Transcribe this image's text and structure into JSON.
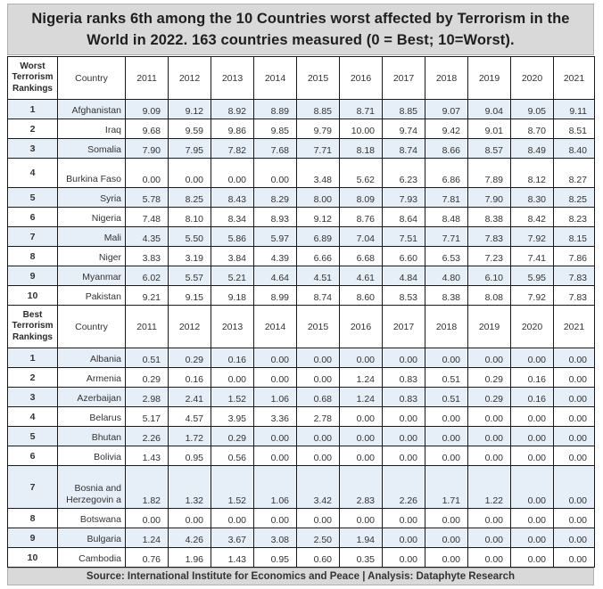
{
  "title": {
    "line1": "Nigeria ranks 6th among the 10 Countries worst affected by Terrorism in the",
    "line2": "World in 2022. 163 countries measured (0 = Best; 10=Worst)."
  },
  "columns": {
    "country": "Country",
    "years": [
      "2011",
      "2012",
      "2013",
      "2014",
      "2015",
      "2016",
      "2017",
      "2018",
      "2019",
      "2020",
      "2021"
    ]
  },
  "worst": {
    "header": [
      "Worst",
      "Terrorism",
      "Rankings"
    ],
    "rows": [
      {
        "rank": "1",
        "country": "Afghanistan",
        "values": [
          "9.09",
          "9.12",
          "8.92",
          "8.89",
          "8.85",
          "8.71",
          "8.85",
          "9.07",
          "9.04",
          "9.05",
          "9.11"
        ]
      },
      {
        "rank": "2",
        "country": "Iraq",
        "values": [
          "9.68",
          "9.59",
          "9.86",
          "9.85",
          "9.79",
          "10.00",
          "9.74",
          "9.42",
          "9.01",
          "8.70",
          "8.51"
        ]
      },
      {
        "rank": "3",
        "country": "Somalia",
        "values": [
          "7.90",
          "7.95",
          "7.82",
          "7.68",
          "7.71",
          "8.18",
          "8.74",
          "8.66",
          "8.57",
          "8.49",
          "8.40"
        ]
      },
      {
        "rank": "4",
        "country": "Burkina Faso",
        "values": [
          "0.00",
          "0.00",
          "0.00",
          "0.00",
          "3.48",
          "5.62",
          "6.23",
          "6.86",
          "7.89",
          "8.12",
          "8.27"
        ]
      },
      {
        "rank": "5",
        "country": "Syria",
        "values": [
          "5.78",
          "8.25",
          "8.43",
          "8.29",
          "8.00",
          "8.09",
          "7.93",
          "7.81",
          "7.90",
          "8.30",
          "8.25"
        ]
      },
      {
        "rank": "6",
        "country": "Nigeria",
        "values": [
          "7.48",
          "8.10",
          "8.34",
          "8.93",
          "9.12",
          "8.76",
          "8.64",
          "8.48",
          "8.38",
          "8.42",
          "8.23"
        ]
      },
      {
        "rank": "7",
        "country": "Mali",
        "values": [
          "4.35",
          "5.50",
          "5.86",
          "5.97",
          "6.89",
          "7.04",
          "7.51",
          "7.71",
          "7.83",
          "7.92",
          "8.15"
        ]
      },
      {
        "rank": "8",
        "country": "Niger",
        "values": [
          "3.83",
          "3.19",
          "3.84",
          "4.39",
          "6.66",
          "6.68",
          "6.60",
          "6.53",
          "7.23",
          "7.41",
          "7.86"
        ]
      },
      {
        "rank": "9",
        "country": "Myanmar",
        "values": [
          "6.02",
          "5.57",
          "5.21",
          "4.64",
          "4.51",
          "4.61",
          "4.84",
          "4.80",
          "6.10",
          "5.95",
          "7.83"
        ]
      },
      {
        "rank": "10",
        "country": "Pakistan",
        "values": [
          "9.21",
          "9.15",
          "9.18",
          "8.99",
          "8.74",
          "8.60",
          "8.53",
          "8.38",
          "8.08",
          "7.92",
          "7.83"
        ]
      }
    ]
  },
  "best": {
    "header": [
      "Best",
      "Terrorism",
      "Rankings"
    ],
    "rows": [
      {
        "rank": "1",
        "country": "Albania",
        "values": [
          "0.51",
          "0.29",
          "0.16",
          "0.00",
          "0.00",
          "0.00",
          "0.00",
          "0.00",
          "0.00",
          "0.00",
          "0.00"
        ]
      },
      {
        "rank": "2",
        "country": "Armenia",
        "values": [
          "0.29",
          "0.16",
          "0.00",
          "0.00",
          "0.00",
          "1.24",
          "0.83",
          "0.51",
          "0.29",
          "0.16",
          "0.00"
        ]
      },
      {
        "rank": "3",
        "country": "Azerbaijan",
        "values": [
          "2.98",
          "2.41",
          "1.52",
          "1.06",
          "0.68",
          "1.24",
          "0.83",
          "0.51",
          "0.29",
          "0.16",
          "0.00"
        ]
      },
      {
        "rank": "4",
        "country": "Belarus",
        "values": [
          "5.17",
          "4.57",
          "3.95",
          "3.36",
          "2.78",
          "0.00",
          "0.00",
          "0.00",
          "0.00",
          "0.00",
          "0.00"
        ]
      },
      {
        "rank": "5",
        "country": "Bhutan",
        "values": [
          "2.26",
          "1.72",
          "0.29",
          "0.00",
          "0.00",
          "0.00",
          "0.00",
          "0.00",
          "0.00",
          "0.00",
          "0.00"
        ]
      },
      {
        "rank": "6",
        "country": "Bolivia",
        "values": [
          "1.43",
          "0.95",
          "0.56",
          "0.00",
          "0.00",
          "0.00",
          "0.00",
          "0.00",
          "0.00",
          "0.00",
          "0.00"
        ]
      },
      {
        "rank": "7",
        "country": "Bosnia and Herzegovin a",
        "values": [
          "1.82",
          "1.32",
          "1.52",
          "1.06",
          "3.42",
          "2.83",
          "2.26",
          "1.71",
          "1.22",
          "0.00",
          "0.00"
        ]
      },
      {
        "rank": "8",
        "country": "Botswana",
        "values": [
          "0.00",
          "0.00",
          "0.00",
          "0.00",
          "0.00",
          "0.00",
          "0.00",
          "0.00",
          "0.00",
          "0.00",
          "0.00"
        ]
      },
      {
        "rank": "9",
        "country": "Bulgaria",
        "values": [
          "1.24",
          "4.26",
          "3.67",
          "3.08",
          "2.50",
          "1.94",
          "0.00",
          "0.00",
          "0.00",
          "0.00",
          "0.00"
        ]
      },
      {
        "rank": "10",
        "country": "Cambodia",
        "values": [
          "0.76",
          "1.96",
          "1.43",
          "0.95",
          "0.60",
          "0.35",
          "0.00",
          "0.00",
          "0.00",
          "0.00",
          "0.00"
        ]
      }
    ]
  },
  "source": "Source: International Institute for Economics and Peace | Analysis: Dataphyte Research",
  "colors": {
    "title_bg": "#d9d9d9",
    "row_blue": "#e6eef8",
    "row_white": "#ffffff",
    "border": "#1a1a1a"
  }
}
